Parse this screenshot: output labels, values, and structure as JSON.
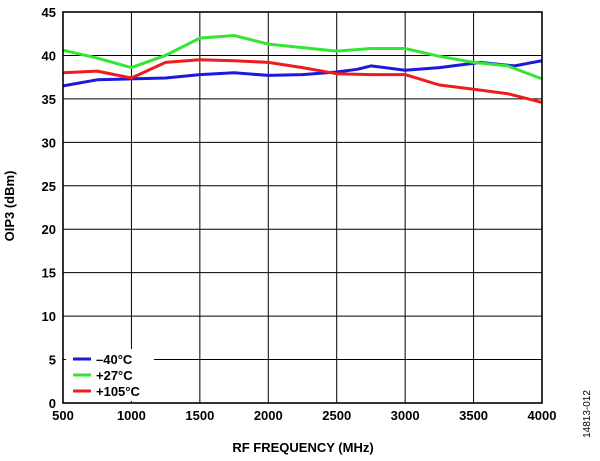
{
  "chart_data": {
    "type": "line",
    "xlabel": "RF FREQUENCY (MHz)",
    "ylabel": "OIP3 (dBm)",
    "xlim": [
      500,
      4000
    ],
    "ylim": [
      0,
      45
    ],
    "x_ticks": [
      500,
      1000,
      1500,
      2000,
      2500,
      3000,
      3500,
      4000
    ],
    "y_ticks": [
      0,
      5,
      10,
      15,
      20,
      25,
      30,
      35,
      40,
      45
    ],
    "grid": true,
    "legend_position": "bottom-left",
    "figure_id": "14813-012",
    "series": [
      {
        "name": "–40°C",
        "color": "#1a1adc",
        "x": [
          500,
          750,
          1000,
          1250,
          1500,
          1750,
          2000,
          2250,
          2500,
          2650,
          2750,
          3000,
          3250,
          3550,
          3800,
          4000
        ],
        "y": [
          36.5,
          37.2,
          37.3,
          37.4,
          37.8,
          38.0,
          37.7,
          37.8,
          38.1,
          38.4,
          38.8,
          38.3,
          38.6,
          39.2,
          38.8,
          39.4
        ]
      },
      {
        "name": "+27°C",
        "color": "#33e633",
        "x": [
          500,
          750,
          1000,
          1250,
          1500,
          1750,
          2000,
          2250,
          2500,
          2750,
          3000,
          3250,
          3500,
          3750,
          4000
        ],
        "y": [
          40.6,
          39.7,
          38.6,
          40.0,
          42.0,
          42.3,
          41.3,
          40.9,
          40.5,
          40.8,
          40.8,
          39.9,
          39.2,
          38.8,
          37.3
        ]
      },
      {
        "name": "+105°C",
        "color": "#ee1c1c",
        "x": [
          500,
          750,
          1000,
          1250,
          1500,
          1750,
          2000,
          2250,
          2500,
          2750,
          3000,
          3250,
          3500,
          3750,
          4000
        ],
        "y": [
          38.0,
          38.2,
          37.4,
          39.2,
          39.5,
          39.4,
          39.2,
          38.6,
          37.9,
          37.8,
          37.8,
          36.6,
          36.1,
          35.6,
          34.6
        ]
      }
    ]
  }
}
